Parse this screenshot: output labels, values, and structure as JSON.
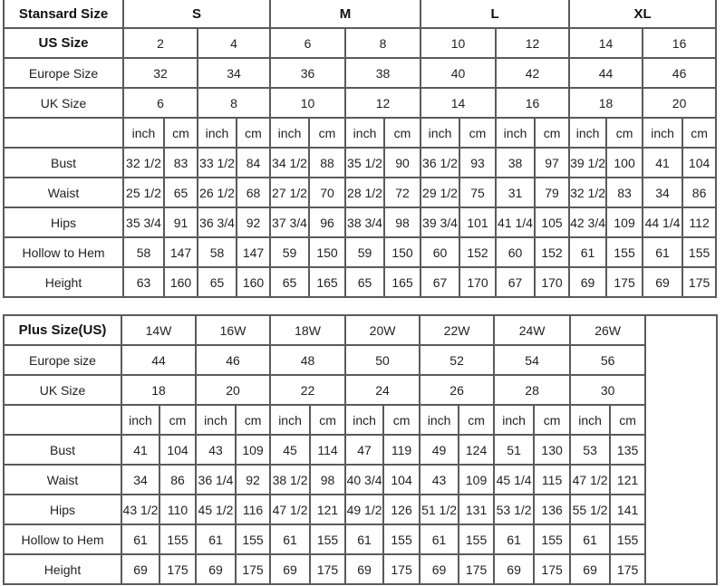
{
  "standard": {
    "header_label": "Stansard Size",
    "groups": [
      "S",
      "M",
      "L",
      "XL"
    ],
    "us_label": "US Size",
    "us": [
      "2",
      "4",
      "6",
      "8",
      "10",
      "12",
      "14",
      "16"
    ],
    "europe_label": "Europe Size",
    "europe": [
      "32",
      "34",
      "36",
      "38",
      "40",
      "42",
      "44",
      "46"
    ],
    "uk_label": "UK Size",
    "uk": [
      "6",
      "8",
      "10",
      "12",
      "14",
      "16",
      "18",
      "20"
    ],
    "units": [
      "inch",
      "cm"
    ],
    "measurements": [
      {
        "label": "Bust",
        "values": [
          "32 1/2",
          "83",
          "33 1/2",
          "84",
          "34 1/2",
          "88",
          "35 1/2",
          "90",
          "36 1/2",
          "93",
          "38",
          "97",
          "39 1/2",
          "100",
          "41",
          "104"
        ]
      },
      {
        "label": "Waist",
        "values": [
          "25 1/2",
          "65",
          "26 1/2",
          "68",
          "27 1/2",
          "70",
          "28 1/2",
          "72",
          "29 1/2",
          "75",
          "31",
          "79",
          "32 1/2",
          "83",
          "34",
          "86"
        ]
      },
      {
        "label": "Hips",
        "values": [
          "35 3/4",
          "91",
          "36 3/4",
          "92",
          "37 3/4",
          "96",
          "38 3/4",
          "98",
          "39 3/4",
          "101",
          "41 1/4",
          "105",
          "42 3/4",
          "109",
          "44 1/4",
          "112"
        ]
      },
      {
        "label": "Hollow to Hem",
        "values": [
          "58",
          "147",
          "58",
          "147",
          "59",
          "150",
          "59",
          "150",
          "60",
          "152",
          "60",
          "152",
          "61",
          "155",
          "61",
          "155"
        ]
      },
      {
        "label": "Height",
        "values": [
          "63",
          "160",
          "65",
          "160",
          "65",
          "165",
          "65",
          "165",
          "67",
          "170",
          "67",
          "170",
          "69",
          "175",
          "69",
          "175"
        ]
      }
    ]
  },
  "plus": {
    "header_label": "Plus Size(US)",
    "us": [
      "14W",
      "16W",
      "18W",
      "20W",
      "22W",
      "24W",
      "26W"
    ],
    "europe_label": "Europe size",
    "europe": [
      "44",
      "46",
      "48",
      "50",
      "52",
      "54",
      "56"
    ],
    "uk_label": "UK Size",
    "uk": [
      "18",
      "20",
      "22",
      "24",
      "26",
      "28",
      "30"
    ],
    "units": [
      "inch",
      "cm"
    ],
    "measurements": [
      {
        "label": "Bust",
        "values": [
          "41",
          "104",
          "43",
          "109",
          "45",
          "114",
          "47",
          "119",
          "49",
          "124",
          "51",
          "130",
          "53",
          "135"
        ]
      },
      {
        "label": "Waist",
        "values": [
          "34",
          "86",
          "36 1/4",
          "92",
          "38 1/2",
          "98",
          "40 3/4",
          "104",
          "43",
          "109",
          "45 1/4",
          "115",
          "47 1/2",
          "121"
        ]
      },
      {
        "label": "Hips",
        "values": [
          "43 1/2",
          "110",
          "45 1/2",
          "116",
          "47 1/2",
          "121",
          "49 1/2",
          "126",
          "51 1/2",
          "131",
          "53 1/2",
          "136",
          "55 1/2",
          "141"
        ]
      },
      {
        "label": "Hollow to Hem",
        "values": [
          "61",
          "155",
          "61",
          "155",
          "61",
          "155",
          "61",
          "155",
          "61",
          "155",
          "61",
          "155",
          "61",
          "155"
        ]
      },
      {
        "label": "Height",
        "values": [
          "69",
          "175",
          "69",
          "175",
          "69",
          "175",
          "69",
          "175",
          "69",
          "175",
          "69",
          "175",
          "69",
          "175"
        ]
      }
    ]
  }
}
